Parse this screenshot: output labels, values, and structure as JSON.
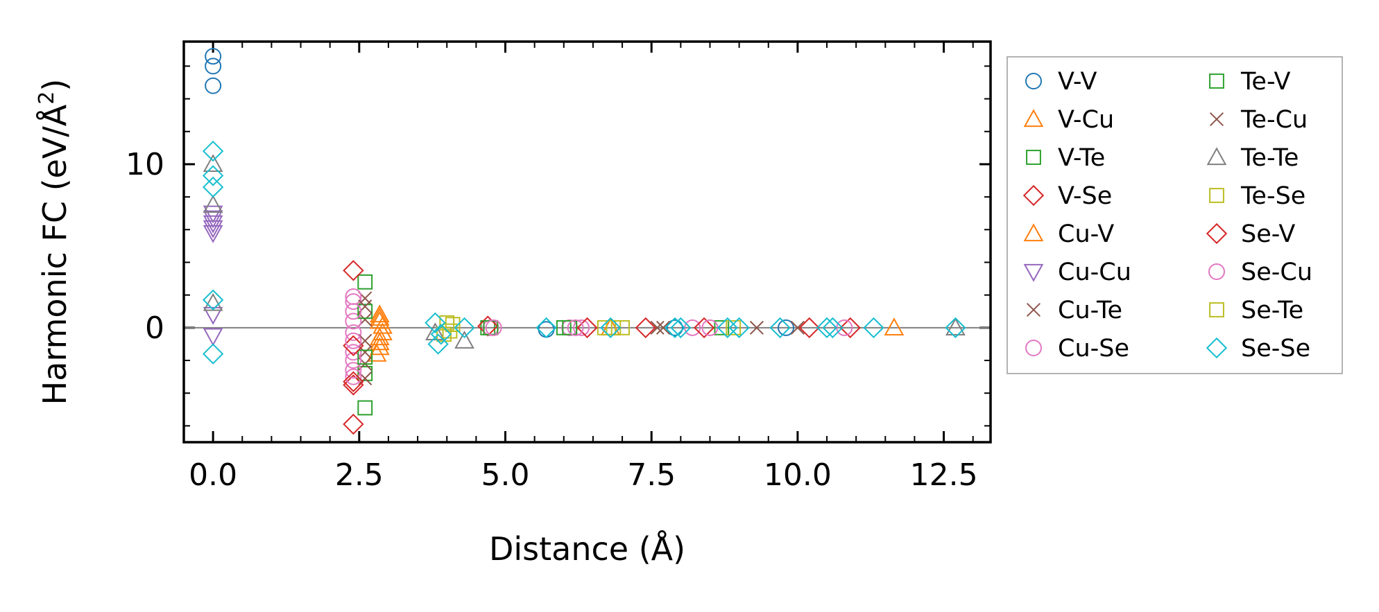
{
  "chart_data": {
    "type": "scatter",
    "title": "",
    "xlabel": "Distance (Å)",
    "ylabel_main": "Harmonic FC (eV/Å",
    "ylabel_sup": "2",
    "ylabel_close": ")",
    "xlim": [
      -0.5,
      13.3
    ],
    "ylim": [
      -7.0,
      17.5
    ],
    "xticks": [
      0.0,
      2.5,
      5.0,
      7.5,
      10.0,
      12.5
    ],
    "xtick_labels": [
      "0.0",
      "2.5",
      "5.0",
      "7.5",
      "10.0",
      "12.5"
    ],
    "yticks": [
      0,
      10
    ],
    "ytick_labels": [
      "0",
      "10"
    ],
    "grid": false,
    "zero_line": true,
    "legend_position": "outside-right",
    "series": [
      {
        "name": "V-V",
        "marker": "circle",
        "color": "#1f77b4",
        "points": [
          [
            0,
            16.6
          ],
          [
            0,
            16.0
          ],
          [
            0,
            14.8
          ],
          [
            5.7,
            -0.1
          ],
          [
            7.9,
            0
          ],
          [
            9.8,
            0
          ]
        ]
      },
      {
        "name": "V-Cu",
        "marker": "triangle-up",
        "color": "#ff7f0e",
        "points": [
          [
            2.85,
            0.8
          ],
          [
            2.85,
            0.4
          ],
          [
            2.9,
            -0.3
          ],
          [
            2.85,
            -0.9
          ],
          [
            2.8,
            -1.6
          ],
          [
            11.65,
            0
          ]
        ]
      },
      {
        "name": "V-Te",
        "marker": "square",
        "color": "#2ca02c",
        "points": [
          [
            2.6,
            2.8
          ],
          [
            2.6,
            -2.8
          ],
          [
            2.6,
            -4.9
          ],
          [
            4.7,
            0
          ],
          [
            6.0,
            0
          ],
          [
            8.7,
            0
          ]
        ]
      },
      {
        "name": "V-Se",
        "marker": "diamond",
        "color": "#d62728",
        "points": [
          [
            2.4,
            3.5
          ],
          [
            2.4,
            -3.5
          ],
          [
            2.4,
            -5.9
          ],
          [
            4.7,
            0.1
          ],
          [
            7.4,
            0
          ],
          [
            10.9,
            0
          ]
        ]
      },
      {
        "name": "Cu-V",
        "marker": "triangle-up",
        "color": "#ff7f0e",
        "points": [
          [
            2.85,
            0.6
          ],
          [
            2.9,
            0.1
          ],
          [
            2.85,
            -0.6
          ],
          [
            2.85,
            -1.2
          ],
          [
            6.8,
            0
          ]
        ]
      },
      {
        "name": "Cu-Cu",
        "marker": "triangle-down",
        "color": "#9467bd",
        "points": [
          [
            0,
            7.0
          ],
          [
            0,
            6.7
          ],
          [
            0,
            6.4
          ],
          [
            0,
            6.1
          ],
          [
            0,
            5.8
          ],
          [
            0,
            0.8
          ],
          [
            0,
            -0.5
          ]
        ]
      },
      {
        "name": "Cu-Te",
        "marker": "x",
        "color": "#8c564b",
        "points": [
          [
            2.6,
            1.8
          ],
          [
            2.6,
            0.5
          ],
          [
            2.6,
            -1.5
          ],
          [
            2.6,
            -2.2
          ],
          [
            2.6,
            -3.1
          ],
          [
            7.6,
            0
          ],
          [
            9.3,
            0
          ]
        ]
      },
      {
        "name": "Cu-Se",
        "marker": "circle",
        "color": "#e377c2",
        "points": [
          [
            2.4,
            1.9
          ],
          [
            2.4,
            1.6
          ],
          [
            2.4,
            0.4
          ],
          [
            2.4,
            -0.3
          ],
          [
            2.4,
            -1.5
          ],
          [
            2.4,
            -2.0
          ],
          [
            2.4,
            -2.6
          ],
          [
            2.4,
            -3.0
          ],
          [
            4.75,
            0
          ],
          [
            6.1,
            0
          ],
          [
            6.3,
            0
          ],
          [
            8.2,
            0
          ],
          [
            10.8,
            0
          ]
        ]
      },
      {
        "name": "Te-V",
        "marker": "square",
        "color": "#2ca02c",
        "points": [
          [
            2.6,
            1.0
          ],
          [
            2.6,
            -1.8
          ],
          [
            4.75,
            0
          ],
          [
            6.1,
            0
          ]
        ]
      },
      {
        "name": "Te-Cu",
        "marker": "x",
        "color": "#8c564b",
        "points": [
          [
            2.6,
            1.3
          ],
          [
            2.6,
            -0.8
          ],
          [
            7.7,
            0
          ],
          [
            10.0,
            0
          ]
        ]
      },
      {
        "name": "Te-Te",
        "marker": "triangle-up",
        "color": "#7f7f7f",
        "points": [
          [
            0,
            10.0
          ],
          [
            0,
            7.5
          ],
          [
            0,
            1.5
          ],
          [
            3.8,
            -0.3
          ],
          [
            4.3,
            -0.8
          ],
          [
            12.7,
            0
          ]
        ]
      },
      {
        "name": "Te-Se",
        "marker": "square",
        "color": "#bcbd22",
        "points": [
          [
            4.0,
            0.3
          ],
          [
            4.05,
            -0.2
          ],
          [
            6.7,
            0
          ],
          [
            7.0,
            0
          ]
        ]
      },
      {
        "name": "Se-V",
        "marker": "diamond",
        "color": "#d62728",
        "points": [
          [
            2.4,
            -1.1
          ],
          [
            2.4,
            -3.3
          ],
          [
            6.4,
            0
          ],
          [
            8.4,
            0
          ],
          [
            10.2,
            0
          ]
        ]
      },
      {
        "name": "Se-Cu",
        "marker": "circle",
        "color": "#e377c2",
        "points": [
          [
            2.4,
            1.0
          ],
          [
            2.4,
            -0.8
          ],
          [
            4.8,
            0
          ],
          [
            6.2,
            0
          ],
          [
            8.5,
            0
          ]
        ]
      },
      {
        "name": "Se-Te",
        "marker": "square",
        "color": "#bcbd22",
        "points": [
          [
            4.1,
            0.2
          ],
          [
            3.95,
            -0.4
          ],
          [
            6.85,
            0
          ],
          [
            8.9,
            0
          ]
        ]
      },
      {
        "name": "Se-Se",
        "marker": "diamond",
        "color": "#17becf",
        "points": [
          [
            0,
            10.8
          ],
          [
            0,
            9.3
          ],
          [
            0,
            8.6
          ],
          [
            0,
            1.7
          ],
          [
            0,
            -1.6
          ],
          [
            3.8,
            0.3
          ],
          [
            3.85,
            -1.0
          ],
          [
            3.9,
            -0.4
          ],
          [
            4.3,
            0
          ],
          [
            5.7,
            0
          ],
          [
            6.8,
            0
          ],
          [
            7.9,
            0
          ],
          [
            8.0,
            0
          ],
          [
            8.8,
            0
          ],
          [
            9.0,
            0
          ],
          [
            9.7,
            0
          ],
          [
            10.5,
            0
          ],
          [
            10.6,
            0
          ],
          [
            11.3,
            0
          ],
          [
            12.7,
            0
          ]
        ]
      }
    ]
  }
}
